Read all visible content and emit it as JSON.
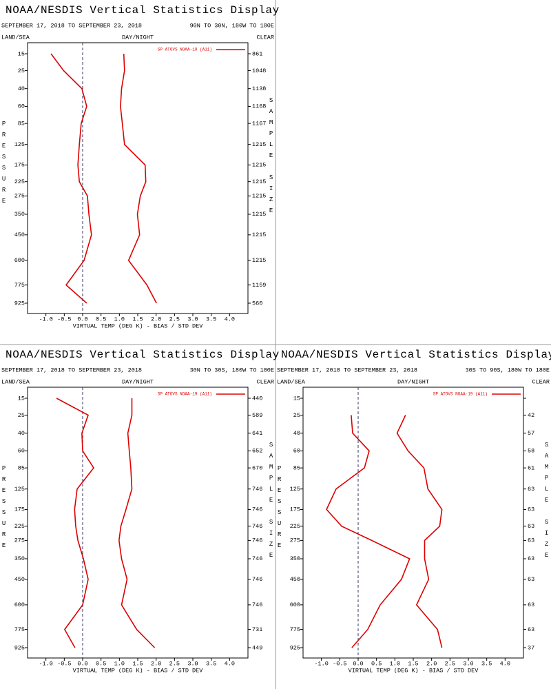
{
  "chart_data": [
    {
      "type": "line",
      "title": "NOAA/NESDIS Vertical Statistics Display",
      "date_range": "SEPTEMBER 17, 2018 TO SEPTEMBER 23, 2018",
      "region": "90N TO 30N, 180W TO 180E",
      "land_sea": "LAND/SEA",
      "day_night": "DAY/NIGHT",
      "clear": "CLEAR",
      "y_label": "PRESSURE",
      "y2_label": "SAMPLE SIZE",
      "xlabel": "VIRTUAL TEMP (DEG K) - BIAS / STD DEV",
      "categories": [
        15,
        25,
        40,
        60,
        85,
        125,
        175,
        225,
        275,
        350,
        450,
        600,
        775,
        925
      ],
      "sample_sizes": [
        861,
        1048,
        1138,
        1168,
        1167,
        1215,
        1215,
        1215,
        1215,
        1215,
        1215,
        1215,
        1159,
        560
      ],
      "xlim": [
        -1.5,
        4.5
      ],
      "xticks": [
        {
          "value": -1,
          "label": "-1.0"
        },
        {
          "value": -0.5,
          "label": "-0.5"
        },
        {
          "value": 0,
          "label": "0.0"
        },
        {
          "value": 0.5,
          "label": "0.5"
        },
        {
          "value": 1,
          "label": "1.0"
        },
        {
          "value": 1.5,
          "label": "1.5"
        },
        {
          "value": 2,
          "label": "2.0"
        },
        {
          "value": 2.5,
          "label": "2.5"
        },
        {
          "value": 3,
          "label": "3.0"
        },
        {
          "value": 3.5,
          "label": "3.5"
        },
        {
          "value": 4,
          "label": "4.0"
        }
      ],
      "legend": "upper right",
      "series": [
        {
          "name": "SP ATOVS NOAA-19 (A11)",
          "color": "#dd0000",
          "values": [
            -0.86,
            -0.52,
            -0.02,
            0.11,
            -0.04,
            -0.09,
            -0.13,
            -0.09,
            0.13,
            0.17,
            0.24,
            0.04,
            -0.45,
            0.11
          ]
        },
        {
          "color": "#dd0000",
          "values": [
            1.12,
            1.14,
            1.06,
            1.03,
            1.08,
            1.14,
            1.7,
            1.72,
            1.57,
            1.49,
            1.55,
            1.25,
            1.75,
            2.01
          ]
        }
      ]
    },
    {
      "type": "line",
      "title": "NOAA/NESDIS Vertical Statistics Display",
      "date_range": "SEPTEMBER 17, 2018 TO SEPTEMBER 23, 2018",
      "region": "30N TO 30S, 180W TO 180E",
      "land_sea": "LAND/SEA",
      "day_night": "DAY/NIGHT",
      "clear": "CLEAR",
      "y_label": "PRESSURE",
      "y2_label": "SAMPLE SIZE",
      "xlabel": "VIRTUAL TEMP (DEG K) - BIAS / STD DEV",
      "categories": [
        15,
        25,
        40,
        60,
        85,
        125,
        175,
        225,
        275,
        350,
        450,
        600,
        775,
        925
      ],
      "sample_sizes": [
        440,
        589,
        641,
        652,
        670,
        746,
        746,
        746,
        746,
        746,
        746,
        746,
        731,
        449
      ],
      "xlim": [
        -1.5,
        4.5
      ],
      "xticks": [
        {
          "value": -1,
          "label": "-1.0"
        },
        {
          "value": -0.5,
          "label": "-0.5"
        },
        {
          "value": 0,
          "label": "0.0"
        },
        {
          "value": 0.5,
          "label": "0.5"
        },
        {
          "value": 1,
          "label": "1.0"
        },
        {
          "value": 1.5,
          "label": "1.5"
        },
        {
          "value": 2,
          "label": "2.0"
        },
        {
          "value": 2.5,
          "label": "2.5"
        },
        {
          "value": 3,
          "label": "3.0"
        },
        {
          "value": 3.5,
          "label": "3.5"
        },
        {
          "value": 4,
          "label": "4.0"
        }
      ],
      "legend": "upper right",
      "series": [
        {
          "name": "SP ATOVS NOAA-19 (A11)",
          "color": "#dd0000",
          "values": [
            -0.71,
            0.15,
            -0.02,
            0.0,
            0.3,
            -0.15,
            -0.22,
            -0.19,
            -0.13,
            0.02,
            0.15,
            0.0,
            -0.49,
            -0.21
          ]
        },
        {
          "color": "#dd0000",
          "values": [
            1.34,
            1.34,
            1.23,
            1.27,
            1.31,
            1.34,
            1.18,
            1.04,
            0.99,
            1.06,
            1.21,
            1.06,
            1.47,
            1.96
          ]
        }
      ]
    },
    {
      "type": "line",
      "title": "NOAA/NESDIS Vertical Statistics Display",
      "date_range": "SEPTEMBER 17, 2018 TO SEPTEMBER 23, 2018",
      "region": "30S TO 90S, 180W TO 180E",
      "land_sea": "LAND/SEA",
      "day_night": "DAY/NIGHT",
      "clear": "CLEAR",
      "y_label": "PRESSURE",
      "y2_label": "SAMPLE SIZE",
      "xlabel": "VIRTUAL TEMP (DEG K) - BIAS / STD DEV",
      "categories": [
        15,
        25,
        40,
        60,
        85,
        125,
        175,
        225,
        275,
        350,
        450,
        600,
        775,
        925
      ],
      "sample_sizes": [
        null,
        42,
        57,
        58,
        61,
        63,
        63,
        63,
        63,
        63,
        63,
        63,
        63,
        37
      ],
      "xlim": [
        -1.5,
        4.5
      ],
      "xticks": [
        {
          "value": -1,
          "label": "-1.0"
        },
        {
          "value": -0.5,
          "label": "-0.5"
        },
        {
          "value": 0,
          "label": "0.0"
        },
        {
          "value": 0.5,
          "label": "0.5"
        },
        {
          "value": 1,
          "label": "1.0"
        },
        {
          "value": 1.5,
          "label": "1.5"
        },
        {
          "value": 2,
          "label": "2.0"
        },
        {
          "value": 2.5,
          "label": "2.5"
        },
        {
          "value": 3,
          "label": "3.0"
        },
        {
          "value": 3.5,
          "label": "3.5"
        },
        {
          "value": 4,
          "label": "4.0"
        }
      ],
      "legend": "upper right",
      "series": [
        {
          "name": "SP ATOVS NOAA-19 (A11)",
          "color": "#dd0000",
          "values": [
            null,
            -0.19,
            -0.15,
            0.3,
            0.17,
            -0.6,
            -0.86,
            -0.45,
            0.37,
            1.4,
            1.18,
            0.6,
            0.26,
            -0.17
          ]
        },
        {
          "color": "#dd0000",
          "values": [
            null,
            1.29,
            1.06,
            1.36,
            1.79,
            1.9,
            2.28,
            2.22,
            1.81,
            1.81,
            1.92,
            1.59,
            2.16,
            2.28
          ]
        }
      ]
    }
  ]
}
